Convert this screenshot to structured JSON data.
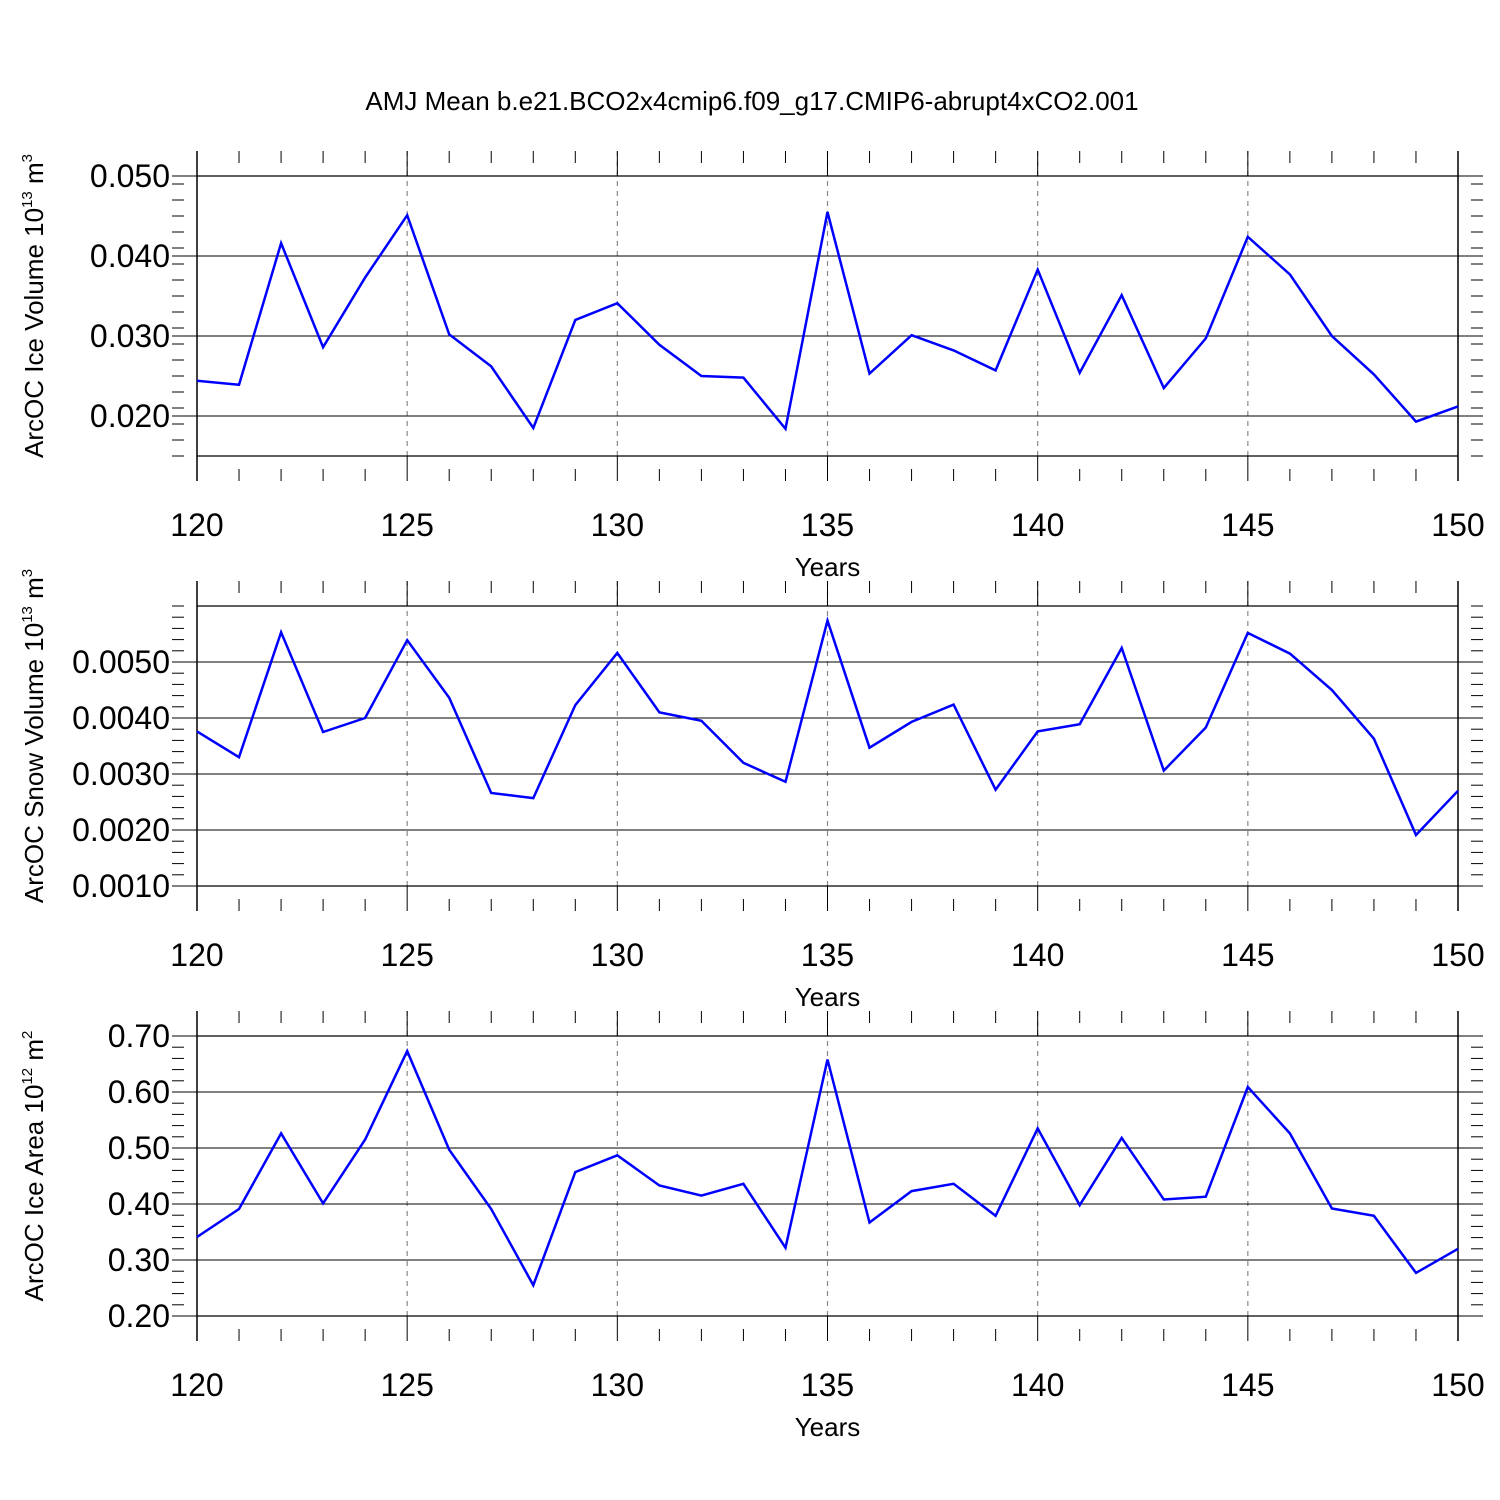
{
  "title": "AMJ Mean b.e21.BCO2x4cmip6.f09_g17.CMIP6-abrupt4xCO2.001",
  "chart_data": [
    {
      "type": "line",
      "title": "AMJ Mean b.e21.BCO2x4cmip6.f09_g17.CMIP6-abrupt4xCO2.001",
      "xlabel": "Years",
      "ylabel": {
        "text": "ArcOC Ice Volume 10",
        "exp": "13",
        "unit": " m",
        "unit_exp": "3"
      },
      "xlim": [
        120,
        150
      ],
      "ylim": [
        0.015,
        0.05
      ],
      "xticks": [
        120,
        125,
        130,
        135,
        140,
        145,
        150
      ],
      "xtick_labels": [
        "120",
        "125",
        "130",
        "135",
        "140",
        "145",
        "150"
      ],
      "yticks": [
        0.02,
        0.03,
        0.04,
        0.05
      ],
      "ytick_labels": [
        "0.020",
        "0.030",
        "0.040",
        "0.050"
      ],
      "grid": "vertical dashed at major x ticks",
      "line_color": "#0000ff",
      "x": [
        120,
        121,
        122,
        123,
        124,
        125,
        126,
        127,
        128,
        129,
        130,
        131,
        132,
        133,
        134,
        135,
        136,
        137,
        138,
        139,
        140,
        141,
        142,
        143,
        144,
        145,
        146,
        147,
        148,
        149,
        150
      ],
      "values": [
        0.0244,
        0.0239,
        0.0416,
        0.0286,
        0.0373,
        0.0451,
        0.0302,
        0.0262,
        0.0185,
        0.032,
        0.0341,
        0.0289,
        0.025,
        0.0248,
        0.0184,
        0.0455,
        0.0253,
        0.0301,
        0.0282,
        0.0257,
        0.0383,
        0.0254,
        0.0351,
        0.0235,
        0.0297,
        0.0424,
        0.0377,
        0.03,
        0.0252,
        0.0193,
        0.0212
      ]
    },
    {
      "type": "line",
      "xlabel": "Years",
      "ylabel": {
        "text": "ArcOC Snow Volume 10",
        "exp": "13",
        "unit": " m",
        "unit_exp": "3"
      },
      "xlim": [
        120,
        150
      ],
      "ylim": [
        0.001,
        0.006
      ],
      "xticks": [
        120,
        125,
        130,
        135,
        140,
        145,
        150
      ],
      "xtick_labels": [
        "120",
        "125",
        "130",
        "135",
        "140",
        "145",
        "150"
      ],
      "yticks": [
        0.001,
        0.002,
        0.003,
        0.004,
        0.005
      ],
      "ytick_labels": [
        "0.0010",
        "0.0020",
        "0.0030",
        "0.0040",
        "0.0050"
      ],
      "grid": "vertical dashed at major x ticks",
      "line_color": "#0000ff",
      "x": [
        120,
        121,
        122,
        123,
        124,
        125,
        126,
        127,
        128,
        129,
        130,
        131,
        132,
        133,
        134,
        135,
        136,
        137,
        138,
        139,
        140,
        141,
        142,
        143,
        144,
        145,
        146,
        147,
        148,
        149,
        150
      ],
      "values": [
        0.00376,
        0.0033,
        0.00553,
        0.00375,
        0.004,
        0.00539,
        0.00436,
        0.00266,
        0.00257,
        0.00423,
        0.00516,
        0.0041,
        0.00395,
        0.0032,
        0.00286,
        0.00574,
        0.00347,
        0.00393,
        0.00424,
        0.00272,
        0.00376,
        0.00389,
        0.00525,
        0.00306,
        0.00383,
        0.00552,
        0.00515,
        0.0045,
        0.00363,
        0.00191,
        0.0027
      ]
    },
    {
      "type": "line",
      "xlabel": "Years",
      "ylabel": {
        "text": "ArcOC Ice Area 10",
        "exp": "12",
        "unit": " m",
        "unit_exp": "2"
      },
      "xlim": [
        120,
        150
      ],
      "ylim": [
        0.2,
        0.7
      ],
      "xticks": [
        120,
        125,
        130,
        135,
        140,
        145,
        150
      ],
      "xtick_labels": [
        "120",
        "125",
        "130",
        "135",
        "140",
        "145",
        "150"
      ],
      "yticks": [
        0.2,
        0.3,
        0.4,
        0.5,
        0.6,
        0.7
      ],
      "ytick_labels": [
        "0.20",
        "0.30",
        "0.40",
        "0.50",
        "0.60",
        "0.70"
      ],
      "grid": "vertical dashed at major x ticks",
      "line_color": "#0000ff",
      "x": [
        120,
        121,
        122,
        123,
        124,
        125,
        126,
        127,
        128,
        129,
        130,
        131,
        132,
        133,
        134,
        135,
        136,
        137,
        138,
        139,
        140,
        141,
        142,
        143,
        144,
        145,
        146,
        147,
        148,
        149,
        150
      ],
      "values": [
        0.341,
        0.391,
        0.526,
        0.401,
        0.515,
        0.673,
        0.497,
        0.391,
        0.255,
        0.457,
        0.487,
        0.433,
        0.415,
        0.436,
        0.322,
        0.658,
        0.367,
        0.423,
        0.436,
        0.379,
        0.535,
        0.398,
        0.518,
        0.408,
        0.413,
        0.609,
        0.526,
        0.392,
        0.379,
        0.277,
        0.32
      ]
    }
  ]
}
